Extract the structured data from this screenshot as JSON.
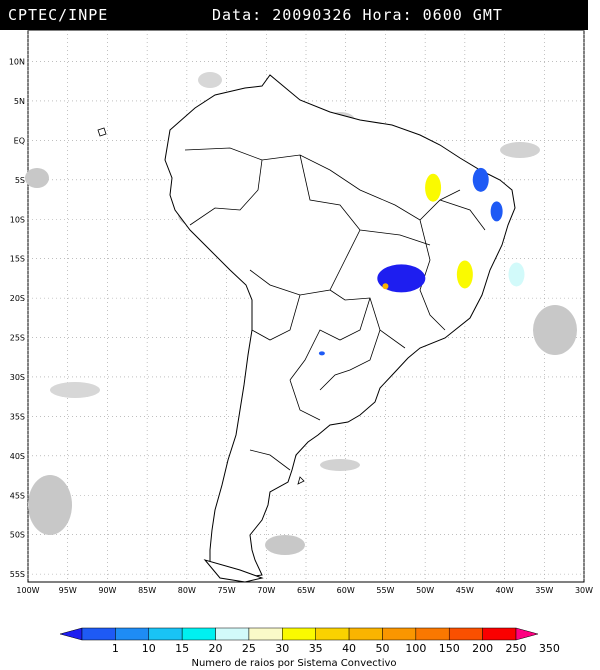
{
  "header": {
    "source": "CPTEC/INPE",
    "date_label": "Data:",
    "date_value": "20090326",
    "time_label": "Hora:",
    "time_value": "0600 GMT"
  },
  "map": {
    "lat_labels": [
      "10N",
      "5N",
      "EQ",
      "5S",
      "10S",
      "15S",
      "20S",
      "25S",
      "30S",
      "35S",
      "40S",
      "45S",
      "50S",
      "55S"
    ],
    "lon_labels": [
      "100W",
      "95W",
      "90W",
      "85W",
      "80W",
      "75W",
      "70W",
      "65W",
      "60W",
      "55W",
      "50W",
      "45W",
      "40W",
      "35W",
      "30W"
    ],
    "lat_range": [
      10,
      -55
    ],
    "lon_range": [
      -100,
      -30
    ],
    "grid": true
  },
  "legend": {
    "ticks": [
      "1",
      "10",
      "15",
      "20",
      "25",
      "30",
      "35",
      "40",
      "50",
      "100",
      "150",
      "200",
      "250",
      "350"
    ],
    "colors": [
      "#1e1ef0",
      "#1e5af5",
      "#1e8cf5",
      "#19c3f5",
      "#00f0f0",
      "#d2fafa",
      "#fafac8",
      "#fafa00",
      "#fad200",
      "#fab400",
      "#fa9600",
      "#fa7800",
      "#fa5000",
      "#fa0000",
      "#ff0080"
    ],
    "caption": "Numero de raios por Sistema Convectivo"
  },
  "storms": [
    {
      "name": "central-brazil-cluster",
      "lon": -53,
      "lat": -17.5,
      "color": "#1e1ef0"
    },
    {
      "name": "northeast-cluster",
      "lon": -43,
      "lat": -5,
      "color": "#1e5af5"
    },
    {
      "name": "east-cluster",
      "lon": -41,
      "lat": -9,
      "color": "#1e5af5"
    },
    {
      "name": "para-cluster",
      "lon": -49,
      "lat": -6,
      "color": "#fafa00"
    },
    {
      "name": "goias-cluster",
      "lon": -45,
      "lat": -17,
      "color": "#fafa00"
    },
    {
      "name": "coast-cluster",
      "lon": -38.5,
      "lat": -17,
      "color": "#d2fafa"
    },
    {
      "name": "orange-cluster",
      "lon": -55,
      "lat": -18.5,
      "color": "#fab400"
    },
    {
      "name": "paraguay-cluster",
      "lon": -63,
      "lat": -27,
      "color": "#1e5af5"
    }
  ]
}
